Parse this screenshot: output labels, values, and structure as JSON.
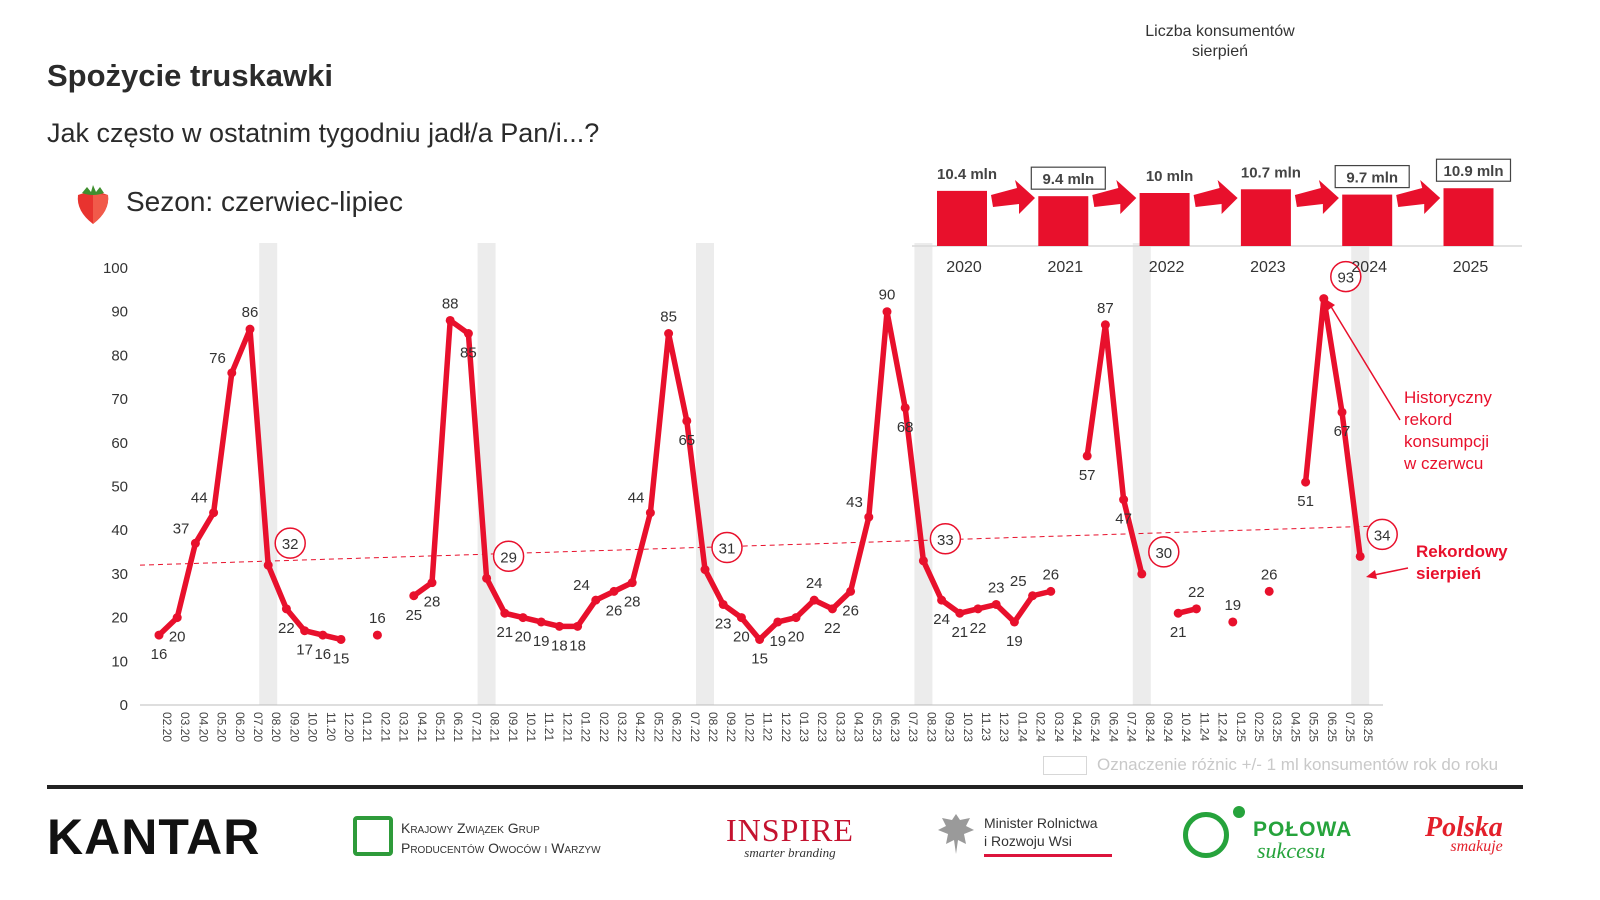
{
  "header": {
    "title": "Spożycie truskawki",
    "subtitle": "Jak często w ostatnim tygodniu jadł/a Pan/i...?",
    "season": "Sezon: czerwiec-lipiec"
  },
  "consumers": {
    "title_line1": "Liczba konsumentów",
    "title_line2": "sierpień",
    "bars": [
      {
        "year": "2020",
        "label": "10.4 mln",
        "value": 10.4,
        "boxed": false
      },
      {
        "year": "2021",
        "label": "9.4 mln",
        "value": 9.4,
        "boxed": true
      },
      {
        "year": "2022",
        "label": "10 mln",
        "value": 10.0,
        "boxed": false
      },
      {
        "year": "2023",
        "label": "10.7 mln",
        "value": 10.7,
        "boxed": false
      },
      {
        "year": "2024",
        "label": "9.7 mln",
        "value": 9.7,
        "boxed": true
      },
      {
        "year": "2025",
        "label": "10.9 mln",
        "value": 10.9,
        "boxed": true
      }
    ]
  },
  "chart_data": {
    "type": "line",
    "ylim": [
      0,
      100
    ],
    "yticks": [
      0,
      10,
      20,
      30,
      40,
      50,
      60,
      70,
      80,
      90,
      100
    ],
    "categories": [
      "02.20",
      "03.20",
      "04.20",
      "05.20",
      "06.20",
      "07.20",
      "08.20",
      "09.20",
      "10.20",
      "11.20",
      "12.20",
      "01.21",
      "02.21",
      "03.21",
      "04.21",
      "05.21",
      "06.21",
      "07.21",
      "08.21",
      "09.21",
      "10.21",
      "11.21",
      "12.21",
      "01.22",
      "02.22",
      "03.22",
      "04.22",
      "05.22",
      "06.22",
      "07.22",
      "08.22",
      "09.22",
      "10.22",
      "11.22",
      "12.22",
      "01.23",
      "02.23",
      "03.23",
      "04.23",
      "05.23",
      "06.23",
      "07.23",
      "08.23",
      "09.23",
      "10.23",
      "11.23",
      "12.23",
      "01.24",
      "02.24",
      "03.24",
      "04.24",
      "05.24",
      "06.24",
      "07.24",
      "08.24",
      "09.24",
      "10.24",
      "11.24",
      "12.24",
      "01.25",
      "02.25",
      "03.25",
      "04.25",
      "05.25",
      "06.25",
      "07.25",
      "08.25"
    ],
    "values": [
      16,
      20,
      37,
      44,
      76,
      86,
      32,
      22,
      17,
      16,
      15,
      null,
      16,
      null,
      25,
      28,
      88,
      85,
      29,
      21,
      20,
      19,
      18,
      18,
      24,
      26,
      28,
      44,
      85,
      65,
      31,
      23,
      20,
      15,
      19,
      20,
      24,
      22,
      26,
      43,
      90,
      68,
      33,
      24,
      21,
      22,
      23,
      19,
      25,
      26,
      null,
      57,
      87,
      47,
      30,
      null,
      21,
      22,
      null,
      19,
      null,
      26,
      null,
      51,
      93,
      67,
      34
    ],
    "highlighted_months": [
      "08.20",
      "08.21",
      "08.22",
      "08.23",
      "08.24",
      "08.25"
    ],
    "trend_line": {
      "start": 32,
      "end": 41
    },
    "circled": [
      "08.20",
      "08.21",
      "08.22",
      "08.23",
      "08.24",
      "06.25",
      "08.25"
    ],
    "annotations": {
      "record_june": "Historyczny rekord konsumpcji w czerwcu",
      "record_august": "Rekordowy sierpień"
    },
    "legend": "Oznaczenie różnic +/- 1 ml konsumentów rok do roku",
    "colors": {
      "line": "#e8102c",
      "band": "#ececec",
      "trend": "#e8102c"
    }
  },
  "footer": {
    "kantar": "KANTAR",
    "kzgp_line1": "Krajowy Związek Grup",
    "kzgp_line2": "Producentów Owoców i Warzyw",
    "inspire_big": "INSPIRE",
    "inspire_small": "smarter branding",
    "minister_line1": "Minister Rolnictwa",
    "minister_line2": "i Rozwoju Wsi",
    "polowa_line1": "POŁOWA",
    "polowa_line2": "sukcesu",
    "polska_line1": "Polska",
    "polska_line2": "smakuje"
  }
}
